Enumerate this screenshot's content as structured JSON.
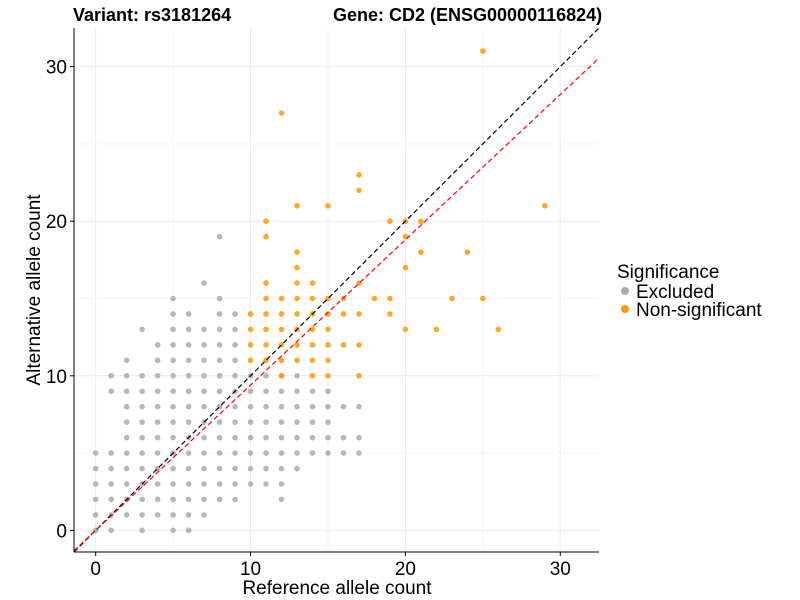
{
  "chart_data": {
    "type": "scatter",
    "title_left": "Variant: rs3181264",
    "title_right": "Gene: CD2 (ENSG00000116824)",
    "xlabel": "Reference allele count",
    "ylabel": "Alternative allele count",
    "xlim": [
      -1.4,
      32.5
    ],
    "ylim": [
      -1.4,
      32.5
    ],
    "x_ticks": [
      0,
      10,
      20,
      30
    ],
    "y_ticks": [
      0,
      10,
      20,
      30
    ],
    "grid": true,
    "legend": {
      "title": "Significance",
      "placement": "right",
      "entries": [
        {
          "label": "Excluded",
          "color": "#aaaaaa"
        },
        {
          "label": "Non-significant",
          "color": "#ff9900"
        }
      ]
    },
    "reference_lines": [
      {
        "name": "y=x",
        "slope": 1.0,
        "intercept": 0,
        "color": "#000000",
        "dash": true
      },
      {
        "name": "fit",
        "slope": 0.94,
        "intercept": 0,
        "color": "#ff0000",
        "dash": true
      }
    ],
    "series": [
      {
        "name": "Excluded",
        "color": "#aaaaaa",
        "points": [
          [
            0,
            0
          ],
          [
            0,
            1
          ],
          [
            0,
            2
          ],
          [
            0,
            3
          ],
          [
            0,
            4
          ],
          [
            0,
            5
          ],
          [
            1,
            0
          ],
          [
            1,
            1
          ],
          [
            1,
            2
          ],
          [
            1,
            3
          ],
          [
            1,
            4
          ],
          [
            1,
            5
          ],
          [
            1,
            9
          ],
          [
            1,
            10
          ],
          [
            2,
            1
          ],
          [
            2,
            2
          ],
          [
            2,
            3
          ],
          [
            2,
            4
          ],
          [
            2,
            5
          ],
          [
            2,
            6
          ],
          [
            2,
            7
          ],
          [
            2,
            8
          ],
          [
            2,
            9
          ],
          [
            2,
            10
          ],
          [
            2,
            11
          ],
          [
            3,
            0
          ],
          [
            3,
            1
          ],
          [
            3,
            2
          ],
          [
            3,
            3
          ],
          [
            3,
            4
          ],
          [
            3,
            5
          ],
          [
            3,
            6
          ],
          [
            3,
            7
          ],
          [
            3,
            8
          ],
          [
            3,
            9
          ],
          [
            3,
            10
          ],
          [
            3,
            13
          ],
          [
            4,
            1
          ],
          [
            4,
            2
          ],
          [
            4,
            3
          ],
          [
            4,
            4
          ],
          [
            4,
            5
          ],
          [
            4,
            6
          ],
          [
            4,
            7
          ],
          [
            4,
            8
          ],
          [
            4,
            9
          ],
          [
            4,
            10
          ],
          [
            4,
            11
          ],
          [
            4,
            12
          ],
          [
            5,
            0
          ],
          [
            5,
            1
          ],
          [
            5,
            2
          ],
          [
            5,
            3
          ],
          [
            5,
            4
          ],
          [
            5,
            5
          ],
          [
            5,
            6
          ],
          [
            5,
            7
          ],
          [
            5,
            8
          ],
          [
            5,
            9
          ],
          [
            5,
            10
          ],
          [
            5,
            11
          ],
          [
            5,
            12
          ],
          [
            5,
            13
          ],
          [
            5,
            14
          ],
          [
            5,
            15
          ],
          [
            6,
            0
          ],
          [
            6,
            1
          ],
          [
            6,
            2
          ],
          [
            6,
            3
          ],
          [
            6,
            4
          ],
          [
            6,
            5
          ],
          [
            6,
            6
          ],
          [
            6,
            7
          ],
          [
            6,
            8
          ],
          [
            6,
            9
          ],
          [
            6,
            10
          ],
          [
            6,
            11
          ],
          [
            6,
            12
          ],
          [
            6,
            13
          ],
          [
            6,
            14
          ],
          [
            7,
            1
          ],
          [
            7,
            2
          ],
          [
            7,
            3
          ],
          [
            7,
            4
          ],
          [
            7,
            5
          ],
          [
            7,
            6
          ],
          [
            7,
            7
          ],
          [
            7,
            8
          ],
          [
            7,
            9
          ],
          [
            7,
            10
          ],
          [
            7,
            11
          ],
          [
            7,
            12
          ],
          [
            7,
            13
          ],
          [
            7,
            16
          ],
          [
            8,
            2
          ],
          [
            8,
            3
          ],
          [
            8,
            4
          ],
          [
            8,
            5
          ],
          [
            8,
            6
          ],
          [
            8,
            7
          ],
          [
            8,
            8
          ],
          [
            8,
            9
          ],
          [
            8,
            10
          ],
          [
            8,
            11
          ],
          [
            8,
            12
          ],
          [
            8,
            13
          ],
          [
            8,
            14
          ],
          [
            8,
            15
          ],
          [
            8,
            19
          ],
          [
            9,
            2
          ],
          [
            9,
            3
          ],
          [
            9,
            4
          ],
          [
            9,
            5
          ],
          [
            9,
            6
          ],
          [
            9,
            7
          ],
          [
            9,
            8
          ],
          [
            9,
            9
          ],
          [
            9,
            10
          ],
          [
            9,
            11
          ],
          [
            9,
            12
          ],
          [
            9,
            13
          ],
          [
            9,
            14
          ],
          [
            10,
            3
          ],
          [
            10,
            4
          ],
          [
            10,
            5
          ],
          [
            10,
            6
          ],
          [
            10,
            7
          ],
          [
            10,
            8
          ],
          [
            10,
            9
          ],
          [
            10,
            10
          ],
          [
            11,
            3
          ],
          [
            11,
            4
          ],
          [
            11,
            5
          ],
          [
            11,
            6
          ],
          [
            11,
            7
          ],
          [
            11,
            8
          ],
          [
            11,
            9
          ],
          [
            11,
            10
          ],
          [
            12,
            2
          ],
          [
            12,
            3
          ],
          [
            12,
            4
          ],
          [
            12,
            5
          ],
          [
            12,
            6
          ],
          [
            12,
            7
          ],
          [
            12,
            8
          ],
          [
            12,
            9
          ],
          [
            12,
            10
          ],
          [
            13,
            4
          ],
          [
            13,
            5
          ],
          [
            13,
            6
          ],
          [
            13,
            7
          ],
          [
            13,
            8
          ],
          [
            13,
            9
          ],
          [
            13,
            10
          ],
          [
            14,
            5
          ],
          [
            14,
            6
          ],
          [
            14,
            7
          ],
          [
            14,
            8
          ],
          [
            14,
            9
          ],
          [
            15,
            5
          ],
          [
            15,
            6
          ],
          [
            15,
            7
          ],
          [
            15,
            8
          ],
          [
            15,
            9
          ],
          [
            16,
            5
          ],
          [
            16,
            6
          ],
          [
            16,
            8
          ],
          [
            17,
            5
          ],
          [
            17,
            6
          ],
          [
            17,
            8
          ]
        ]
      },
      {
        "name": "Non-significant",
        "color": "#ff9900",
        "points": [
          [
            10,
            11
          ],
          [
            10,
            12
          ],
          [
            10,
            13
          ],
          [
            10,
            14
          ],
          [
            11,
            11
          ],
          [
            11,
            12
          ],
          [
            11,
            13
          ],
          [
            11,
            14
          ],
          [
            11,
            15
          ],
          [
            11,
            16
          ],
          [
            11,
            19
          ],
          [
            11,
            20
          ],
          [
            12,
            10
          ],
          [
            12,
            11
          ],
          [
            12,
            12
          ],
          [
            12,
            13
          ],
          [
            12,
            14
          ],
          [
            12,
            15
          ],
          [
            12,
            27
          ],
          [
            13,
            11
          ],
          [
            13,
            12
          ],
          [
            13,
            13
          ],
          [
            13,
            14
          ],
          [
            13,
            15
          ],
          [
            13,
            16
          ],
          [
            13,
            17
          ],
          [
            13,
            18
          ],
          [
            13,
            21
          ],
          [
            14,
            10
          ],
          [
            14,
            11
          ],
          [
            14,
            12
          ],
          [
            14,
            13
          ],
          [
            14,
            14
          ],
          [
            14,
            15
          ],
          [
            14,
            16
          ],
          [
            15,
            10
          ],
          [
            15,
            11
          ],
          [
            15,
            12
          ],
          [
            15,
            13
          ],
          [
            15,
            14
          ],
          [
            15,
            15
          ],
          [
            15,
            21
          ],
          [
            16,
            12
          ],
          [
            16,
            14
          ],
          [
            16,
            15
          ],
          [
            17,
            10
          ],
          [
            17,
            12
          ],
          [
            17,
            14
          ],
          [
            17,
            16
          ],
          [
            17,
            22
          ],
          [
            17,
            23
          ],
          [
            18,
            15
          ],
          [
            19,
            14
          ],
          [
            19,
            15
          ],
          [
            19,
            20
          ],
          [
            20,
            13
          ],
          [
            20,
            17
          ],
          [
            20,
            19
          ],
          [
            20,
            20
          ],
          [
            21,
            18
          ],
          [
            21,
            20
          ],
          [
            22,
            13
          ],
          [
            23,
            15
          ],
          [
            24,
            18
          ],
          [
            25,
            15
          ],
          [
            25,
            31
          ],
          [
            26,
            13
          ],
          [
            29,
            21
          ]
        ]
      }
    ]
  }
}
